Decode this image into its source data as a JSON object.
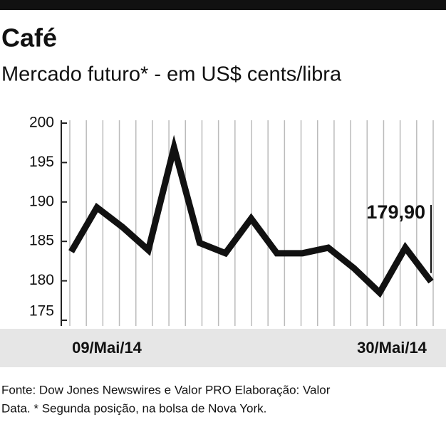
{
  "chart_data": {
    "type": "line",
    "title": "Café",
    "subtitle": "Mercado futuro* - em US$ cents/libra",
    "categories": [
      "09/Mai/14",
      null,
      null,
      null,
      null,
      null,
      null,
      null,
      null,
      null,
      null,
      null,
      null,
      null,
      "30/Mai/14"
    ],
    "values": [
      183.7,
      189.3,
      186.8,
      183.9,
      196.9,
      184.8,
      183.5,
      187.9,
      183.5,
      183.5,
      184.2,
      181.6,
      178.5,
      184.2,
      179.9
    ],
    "value_labels": [
      null,
      null,
      null,
      null,
      null,
      null,
      null,
      null,
      null,
      null,
      null,
      null,
      null,
      null,
      "179,90"
    ],
    "color": "#111111",
    "ylim": [
      175,
      200
    ],
    "yticks": [
      175,
      180,
      185,
      190,
      195,
      200
    ],
    "source": [
      "Fonte: Dow Jones Newswires e Valor PRO Elaboração: Valor",
      "Data. * Segunda posição, na bolsa de Nova York."
    ]
  }
}
